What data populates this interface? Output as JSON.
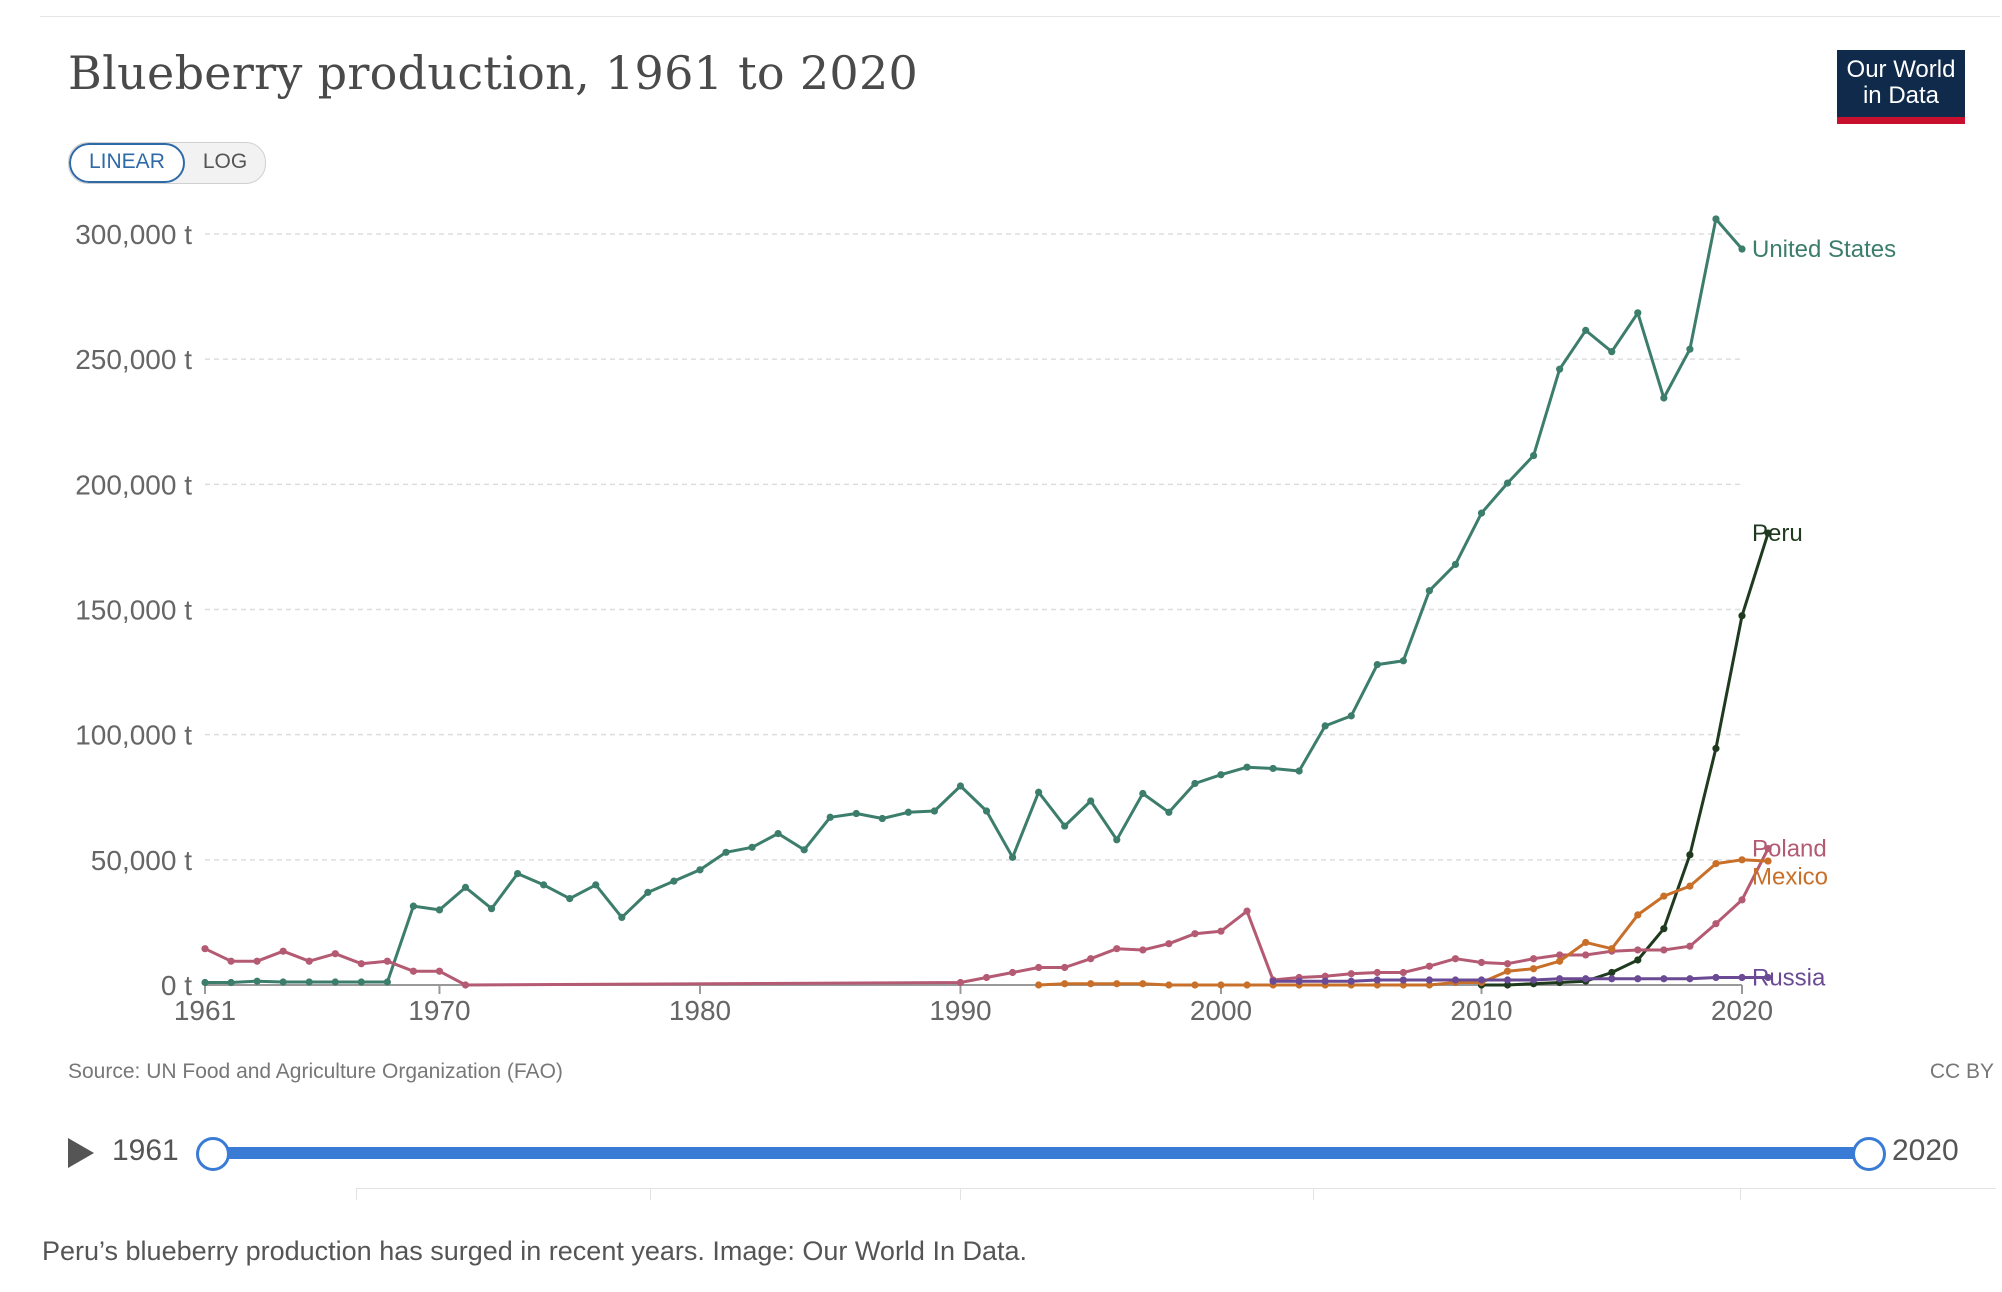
{
  "header": {
    "title": "Blueberry production, 1961 to 2020",
    "logo_line1": "Our World",
    "logo_line2": "in Data"
  },
  "controls": {
    "linear_label": "LINEAR",
    "log_label": "LOG",
    "active": "LINEAR"
  },
  "footer": {
    "source": "Source: UN Food and Agriculture Organization (FAO)",
    "license": "CC BY"
  },
  "timeline": {
    "start_label": "1961",
    "end_label": "2020",
    "start_year": 1961,
    "end_year": 2020
  },
  "caption": "Peru’s blueberry production has surged in recent years. Image: Our World In Data.",
  "chart_data": {
    "type": "line",
    "title": "Blueberry production, 1961 to 2020",
    "xlabel": "",
    "ylabel": "",
    "xlim": [
      1961,
      2020
    ],
    "ylim": [
      0,
      300000
    ],
    "x_ticks": [
      1961,
      1970,
      1980,
      1990,
      2000,
      2010,
      2020
    ],
    "x_tick_labels": [
      "1961",
      "1970",
      "1980",
      "1990",
      "2000",
      "2010",
      "2020"
    ],
    "y_ticks": [
      0,
      50000,
      100000,
      150000,
      200000,
      250000,
      300000
    ],
    "y_tick_labels": [
      "0 t",
      "50,000 t",
      "100,000 t",
      "150,000 t",
      "200,000 t",
      "250,000 t",
      "300,000 t"
    ],
    "grid": true,
    "legend": "inline-right",
    "series": [
      {
        "name": "United States",
        "color": "#3c7d6b",
        "points": [
          [
            1961,
            1000
          ],
          [
            1962,
            1000
          ],
          [
            1963,
            1500
          ],
          [
            1964,
            1200
          ],
          [
            1965,
            1200
          ],
          [
            1966,
            1200
          ],
          [
            1967,
            1200
          ],
          [
            1968,
            1200
          ],
          [
            1969,
            31500
          ],
          [
            1970,
            30000
          ],
          [
            1971,
            39000
          ],
          [
            1972,
            30500
          ],
          [
            1973,
            44500
          ],
          [
            1974,
            40000
          ],
          [
            1975,
            34500
          ],
          [
            1976,
            40000
          ],
          [
            1977,
            27000
          ],
          [
            1978,
            37000
          ],
          [
            1979,
            41500
          ],
          [
            1980,
            46000
          ],
          [
            1981,
            53000
          ],
          [
            1982,
            55000
          ],
          [
            1983,
            60500
          ],
          [
            1984,
            54000
          ],
          [
            1985,
            67000
          ],
          [
            1986,
            68500
          ],
          [
            1987,
            66500
          ],
          [
            1988,
            69000
          ],
          [
            1989,
            69500
          ],
          [
            1990,
            79500
          ],
          [
            1991,
            69500
          ],
          [
            1992,
            51000
          ],
          [
            1993,
            77000
          ],
          [
            1994,
            63500
          ],
          [
            1995,
            73500
          ],
          [
            1996,
            58000
          ],
          [
            1997,
            76500
          ],
          [
            1998,
            69000
          ],
          [
            1999,
            80500
          ],
          [
            2000,
            84000
          ],
          [
            2001,
            87000
          ],
          [
            2002,
            86500
          ],
          [
            2003,
            85500
          ],
          [
            2004,
            103500
          ],
          [
            2005,
            107500
          ],
          [
            2006,
            128000
          ],
          [
            2007,
            129500
          ],
          [
            2008,
            157500
          ],
          [
            2009,
            168000
          ],
          [
            2010,
            188500
          ],
          [
            2011,
            200500
          ],
          [
            2012,
            211500
          ],
          [
            2013,
            246000
          ],
          [
            2014,
            261500
          ],
          [
            2015,
            253000
          ],
          [
            2016,
            268500
          ],
          [
            2017,
            234500
          ],
          [
            2018,
            254000
          ],
          [
            2019,
            306000
          ],
          [
            2020,
            294000
          ]
        ]
      },
      {
        "name": "Peru",
        "color": "#1f3a1f",
        "points": [
          [
            2010,
            0
          ],
          [
            2011,
            0
          ],
          [
            2012,
            500
          ],
          [
            2013,
            1000
          ],
          [
            2014,
            1500
          ],
          [
            2015,
            5000
          ],
          [
            2016,
            10000
          ],
          [
            2017,
            22500
          ],
          [
            2018,
            52000
          ],
          [
            2019,
            94500
          ],
          [
            2020,
            147500
          ],
          [
            2021,
            180500
          ]
        ]
      },
      {
        "name": "Poland",
        "color": "#b45a73",
        "points": [
          [
            1961,
            14500
          ],
          [
            1962,
            9500
          ],
          [
            1963,
            9500
          ],
          [
            1964,
            13500
          ],
          [
            1965,
            9500
          ],
          [
            1966,
            12500
          ],
          [
            1967,
            8500
          ],
          [
            1968,
            9500
          ],
          [
            1969,
            5500
          ],
          [
            1970,
            5500
          ],
          [
            1971,
            0
          ],
          [
            1990,
            1000
          ],
          [
            1991,
            3000
          ],
          [
            1992,
            5000
          ],
          [
            1993,
            7000
          ],
          [
            1994,
            7000
          ],
          [
            1995,
            10500
          ],
          [
            1996,
            14500
          ],
          [
            1997,
            14000
          ],
          [
            1998,
            16500
          ],
          [
            1999,
            20500
          ],
          [
            2000,
            21500
          ],
          [
            2001,
            29500
          ],
          [
            2002,
            2000
          ],
          [
            2003,
            3000
          ],
          [
            2004,
            3500
          ],
          [
            2005,
            4500
          ],
          [
            2006,
            5000
          ],
          [
            2007,
            5000
          ],
          [
            2008,
            7500
          ],
          [
            2009,
            10500
          ],
          [
            2010,
            9000
          ],
          [
            2011,
            8500
          ],
          [
            2012,
            10500
          ],
          [
            2013,
            12000
          ],
          [
            2014,
            12000
          ],
          [
            2015,
            13500
          ],
          [
            2016,
            14000
          ],
          [
            2017,
            14000
          ],
          [
            2018,
            15500
          ],
          [
            2019,
            24500
          ],
          [
            2020,
            34000
          ],
          [
            2021,
            54500
          ]
        ]
      },
      {
        "name": "Mexico",
        "color": "#c8702a",
        "points": [
          [
            1993,
            0
          ],
          [
            1994,
            500
          ],
          [
            1995,
            500
          ],
          [
            1996,
            500
          ],
          [
            1997,
            500
          ],
          [
            1998,
            0
          ],
          [
            1999,
            0
          ],
          [
            2000,
            0
          ],
          [
            2001,
            0
          ],
          [
            2002,
            0
          ],
          [
            2003,
            0
          ],
          [
            2004,
            0
          ],
          [
            2005,
            0
          ],
          [
            2006,
            0
          ],
          [
            2007,
            0
          ],
          [
            2008,
            0
          ],
          [
            2009,
            1000
          ],
          [
            2010,
            1000
          ],
          [
            2011,
            5500
          ],
          [
            2012,
            6500
          ],
          [
            2013,
            9500
          ],
          [
            2014,
            17000
          ],
          [
            2015,
            14500
          ],
          [
            2016,
            28000
          ],
          [
            2017,
            35500
          ],
          [
            2018,
            39500
          ],
          [
            2019,
            48500
          ],
          [
            2020,
            50000
          ],
          [
            2021,
            49500
          ]
        ]
      },
      {
        "name": "Russia",
        "color": "#6a4a94",
        "points": [
          [
            2002,
            1500
          ],
          [
            2003,
            1500
          ],
          [
            2004,
            1500
          ],
          [
            2005,
            1500
          ],
          [
            2006,
            2000
          ],
          [
            2007,
            2000
          ],
          [
            2008,
            2000
          ],
          [
            2009,
            2000
          ],
          [
            2010,
            2000
          ],
          [
            2011,
            2000
          ],
          [
            2012,
            2000
          ],
          [
            2013,
            2500
          ],
          [
            2014,
            2500
          ],
          [
            2015,
            2500
          ],
          [
            2016,
            2500
          ],
          [
            2017,
            2500
          ],
          [
            2018,
            2500
          ],
          [
            2019,
            3000
          ],
          [
            2020,
            3000
          ],
          [
            2021,
            3000
          ]
        ]
      }
    ]
  }
}
